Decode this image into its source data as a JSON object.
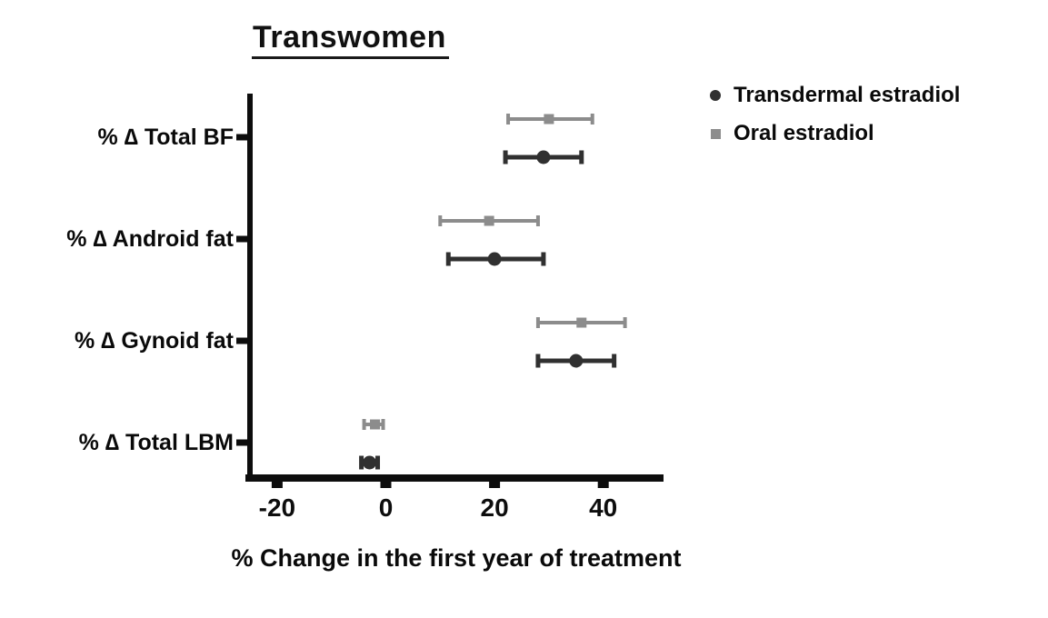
{
  "chart_data": {
    "type": "scatter",
    "subtype": "horizontal-error-bar-forest-plot",
    "title": "Transwomen",
    "xlabel": "% Change in the first year of treatment",
    "ylabel": "",
    "categories": [
      "% ∆ Total BF",
      "% ∆ Android fat",
      "% ∆ Gynoid fat",
      "% ∆ Total LBM"
    ],
    "x_ticks": [
      -20,
      0,
      20,
      40
    ],
    "xlim": [
      -27.5,
      51
    ],
    "grid": false,
    "legend_position": "top-right",
    "axis_color": "#0d0d0d",
    "series": [
      {
        "name": "Transdermal estradiol",
        "marker": "circle",
        "color": "#303030",
        "points": [
          {
            "category": "% ∆ Total BF",
            "value": 29,
            "lo": 22,
            "hi": 36
          },
          {
            "category": "% ∆ Android fat",
            "value": 20,
            "lo": 11.5,
            "hi": 29
          },
          {
            "category": "% ∆ Gynoid fat",
            "value": 35,
            "lo": 28,
            "hi": 42
          },
          {
            "category": "% ∆ Total LBM",
            "value": -3,
            "lo": -4.5,
            "hi": -1.5
          }
        ]
      },
      {
        "name": "Oral estradiol",
        "marker": "square",
        "color": "#8c8c8c",
        "points": [
          {
            "category": "% ∆ Total BF",
            "value": 30,
            "lo": 22.5,
            "hi": 38
          },
          {
            "category": "% ∆ Android fat",
            "value": 19,
            "lo": 10,
            "hi": 28
          },
          {
            "category": "% ∆ Gynoid fat",
            "value": 36,
            "lo": 28,
            "hi": 44
          },
          {
            "category": "% ∆ Total LBM",
            "value": -2,
            "lo": -4,
            "hi": -0.5
          }
        ]
      }
    ]
  }
}
